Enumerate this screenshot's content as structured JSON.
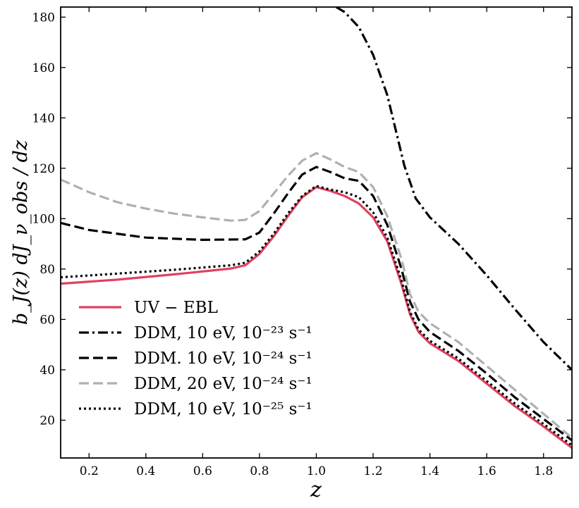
{
  "chart_data": {
    "type": "line",
    "title": "",
    "xlabel": "z",
    "ylabel": "b_J(z) dJ_ν_obs / dz",
    "xlim": [
      0.1,
      1.9
    ],
    "ylim": [
      5,
      184
    ],
    "xticks": [
      0.2,
      0.4,
      0.6,
      0.8,
      1.0,
      1.2,
      1.4,
      1.6,
      1.8
    ],
    "xtick_labels": [
      "0.2",
      "0.4",
      "0.6",
      "0.8",
      "1.0",
      "1.2",
      "1.4",
      "1.6",
      "1.8"
    ],
    "yticks": [
      20,
      40,
      60,
      80,
      100,
      120,
      140,
      160,
      180
    ],
    "ytick_labels": [
      "20",
      "40",
      "60",
      "80",
      "100",
      "120",
      "140",
      "160",
      "180"
    ],
    "legend_position": "lower-left",
    "series": [
      {
        "name": "UV − EBL",
        "color": "#e0405e",
        "style": "solid",
        "points": [
          [
            0.1,
            74.2
          ],
          [
            0.3,
            75.8
          ],
          [
            0.5,
            77.9
          ],
          [
            0.7,
            80.2
          ],
          [
            0.75,
            81.5
          ],
          [
            0.8,
            86
          ],
          [
            0.85,
            93
          ],
          [
            0.9,
            101
          ],
          [
            0.95,
            108.5
          ],
          [
            1.0,
            112.5
          ],
          [
            1.05,
            111
          ],
          [
            1.1,
            109
          ],
          [
            1.15,
            106
          ],
          [
            1.2,
            100.5
          ],
          [
            1.25,
            91
          ],
          [
            1.3,
            74
          ],
          [
            1.33,
            62
          ],
          [
            1.36,
            55
          ],
          [
            1.4,
            50.5
          ],
          [
            1.5,
            43.5
          ],
          [
            1.6,
            34.5
          ],
          [
            1.7,
            25.5
          ],
          [
            1.8,
            17.5
          ],
          [
            1.9,
            9
          ]
        ]
      },
      {
        "name": "DDM, 10 eV, 10⁻²³ s⁻¹",
        "color": "#000000",
        "style": "dashdot",
        "points": [
          [
            1.07,
            184
          ],
          [
            1.1,
            182
          ],
          [
            1.15,
            176
          ],
          [
            1.2,
            165
          ],
          [
            1.25,
            149
          ],
          [
            1.28,
            135
          ],
          [
            1.31,
            121
          ],
          [
            1.35,
            108
          ],
          [
            1.4,
            100.5
          ],
          [
            1.5,
            90
          ],
          [
            1.6,
            77.5
          ],
          [
            1.7,
            64
          ],
          [
            1.8,
            51
          ],
          [
            1.9,
            40
          ]
        ]
      },
      {
        "name": "DDM. 10 eV, 10⁻²⁴ s⁻¹",
        "color": "#000000",
        "style": "dashed",
        "points": [
          [
            0.1,
            98.3
          ],
          [
            0.2,
            95.5
          ],
          [
            0.4,
            92.5
          ],
          [
            0.6,
            91.6
          ],
          [
            0.75,
            91.8
          ],
          [
            0.8,
            94.5
          ],
          [
            0.85,
            102
          ],
          [
            0.9,
            110
          ],
          [
            0.95,
            117.5
          ],
          [
            1.0,
            120.5
          ],
          [
            1.05,
            118.5
          ],
          [
            1.1,
            116
          ],
          [
            1.15,
            115
          ],
          [
            1.2,
            109
          ],
          [
            1.25,
            97.5
          ],
          [
            1.3,
            80
          ],
          [
            1.33,
            67
          ],
          [
            1.36,
            60
          ],
          [
            1.4,
            55
          ],
          [
            1.5,
            47.5
          ],
          [
            1.6,
            38.5
          ],
          [
            1.7,
            29
          ],
          [
            1.8,
            20.5
          ],
          [
            1.9,
            12
          ]
        ]
      },
      {
        "name": "DDM, 20 eV, 10⁻²⁴ s⁻¹",
        "color": "#b0b0b0",
        "style": "dashed",
        "points": [
          [
            0.1,
            115.5
          ],
          [
            0.2,
            110.5
          ],
          [
            0.3,
            106.5
          ],
          [
            0.4,
            104
          ],
          [
            0.5,
            102
          ],
          [
            0.6,
            100.5
          ],
          [
            0.7,
            99.2
          ],
          [
            0.75,
            99.5
          ],
          [
            0.8,
            103
          ],
          [
            0.85,
            110
          ],
          [
            0.9,
            117
          ],
          [
            0.95,
            123
          ],
          [
            1.0,
            126
          ],
          [
            1.05,
            123.5
          ],
          [
            1.1,
            120.5
          ],
          [
            1.15,
            118.5
          ],
          [
            1.2,
            112.5
          ],
          [
            1.25,
            101
          ],
          [
            1.3,
            84
          ],
          [
            1.33,
            70
          ],
          [
            1.36,
            63
          ],
          [
            1.4,
            58.5
          ],
          [
            1.5,
            51
          ],
          [
            1.6,
            41.5
          ],
          [
            1.7,
            32
          ],
          [
            1.8,
            22.5
          ],
          [
            1.9,
            13
          ]
        ]
      },
      {
        "name": "DDM, 10 eV, 10⁻²⁵ s⁻¹",
        "color": "#000000",
        "style": "dotted",
        "points": [
          [
            0.1,
            76.7
          ],
          [
            0.3,
            78.2
          ],
          [
            0.5,
            79.7
          ],
          [
            0.7,
            81.5
          ],
          [
            0.75,
            82.5
          ],
          [
            0.8,
            87
          ],
          [
            0.85,
            94
          ],
          [
            0.9,
            102
          ],
          [
            0.95,
            109
          ],
          [
            1.0,
            113
          ],
          [
            1.05,
            111.5
          ],
          [
            1.1,
            110.5
          ],
          [
            1.15,
            108.5
          ],
          [
            1.2,
            102.5
          ],
          [
            1.25,
            92.5
          ],
          [
            1.3,
            75.5
          ],
          [
            1.33,
            63
          ],
          [
            1.36,
            56
          ],
          [
            1.4,
            51.5
          ],
          [
            1.5,
            44.5
          ],
          [
            1.6,
            35.5
          ],
          [
            1.7,
            26.5
          ],
          [
            1.8,
            18.5
          ],
          [
            1.9,
            10
          ]
        ]
      }
    ]
  }
}
